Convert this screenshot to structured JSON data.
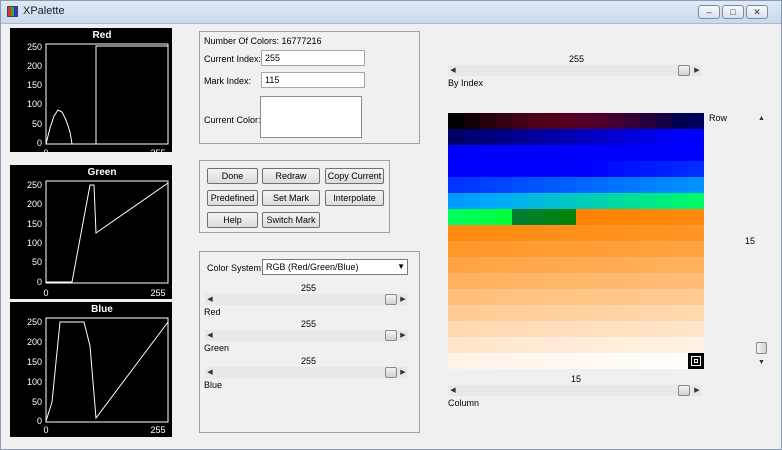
{
  "window": {
    "title": "XPalette",
    "min_icon": "minimize-icon",
    "max_icon": "maximize-icon",
    "close_icon": "close-icon"
  },
  "plots": [
    {
      "title": "Red",
      "y_ticks": [
        "250",
        "200",
        "150",
        "100",
        "50",
        "0"
      ],
      "x_ticks": [
        "0",
        "255"
      ]
    },
    {
      "title": "Green",
      "y_ticks": [
        "250",
        "200",
        "150",
        "100",
        "50",
        "0"
      ],
      "x_ticks": [
        "0",
        "255"
      ]
    },
    {
      "title": "Blue",
      "y_ticks": [
        "250",
        "200",
        "150",
        "100",
        "50",
        "0"
      ],
      "x_ticks": [
        "0",
        "255"
      ]
    }
  ],
  "info": {
    "num_colors": "Number Of Colors: 16777216",
    "current_index_label": "Current Index:",
    "current_index_value": "255",
    "mark_index_label": "Mark Index:",
    "mark_index_value": "115",
    "current_color_label": "Current Color:"
  },
  "buttons": {
    "done": "Done",
    "redraw": "Redraw",
    "copy_current": "Copy Current",
    "predefined": "Predefined",
    "set_mark": "Set Mark",
    "interpolate": "Interpolate",
    "help": "Help",
    "switch_mark": "Switch Mark"
  },
  "color_system": {
    "label": "Color System:",
    "selected": "RGB  (Red/Green/Blue)",
    "sliders": [
      {
        "value": "255",
        "label": "Red"
      },
      {
        "value": "255",
        "label": "Green"
      },
      {
        "value": "255",
        "label": "Blue"
      }
    ]
  },
  "palette_panel": {
    "by_index_value": "255",
    "by_index_label": "By Index",
    "row_label": "Row",
    "row_value": "15",
    "column_value": "15",
    "column_label": "Column"
  },
  "colors": {
    "plot_bg": "#000000",
    "plot_line": "#ffffff",
    "window_bg": "#f0f0f0"
  }
}
